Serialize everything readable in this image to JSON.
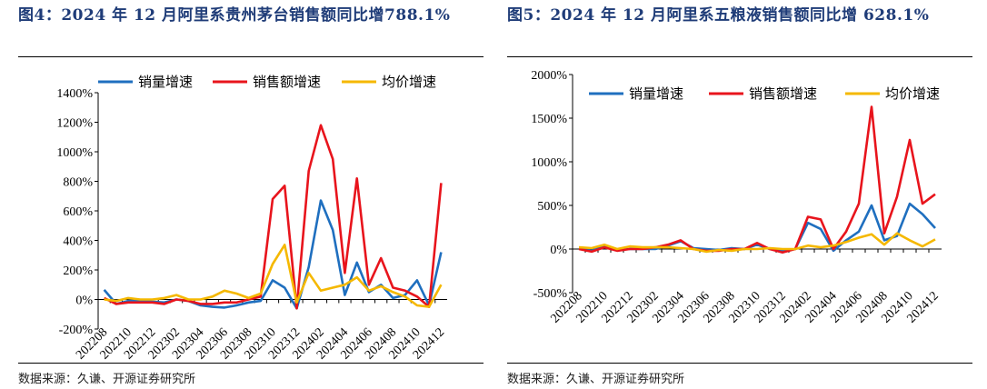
{
  "figures": [
    {
      "title": "图4：2024 年 12 月阿里系贵州茅台销售额同比增788.1%",
      "source": "数据来源：久谦、开源证券研究所",
      "chart_data": {
        "type": "line",
        "ytick_labels": [
          "-200%",
          "0%",
          "200%",
          "400%",
          "600%",
          "800%",
          "1000%",
          "1200%",
          "1400%"
        ],
        "ylim": [
          -200,
          1400
        ],
        "xtick_labels": [
          "202208",
          "202210",
          "202212",
          "202302",
          "202304",
          "202306",
          "202308",
          "202310",
          "202312",
          "202402",
          "202404",
          "202406",
          "202408",
          "202410",
          "202412"
        ],
        "categories": [
          "202208",
          "202209",
          "202210",
          "202211",
          "202212",
          "202301",
          "202302",
          "202303",
          "202304",
          "202305",
          "202306",
          "202307",
          "202308",
          "202309",
          "202310",
          "202311",
          "202312",
          "202401",
          "202402",
          "202403",
          "202404",
          "202405",
          "202406",
          "202407",
          "202408",
          "202409",
          "202410",
          "202411",
          "202412"
        ],
        "legend_position": "top",
        "series": [
          {
            "name": "销量增速",
            "color": "#1f6fbf",
            "values": [
              65,
              -30,
              -10,
              -10,
              -15,
              -20,
              0,
              -10,
              -40,
              -50,
              -55,
              -40,
              -20,
              -10,
              130,
              80,
              -60,
              220,
              670,
              470,
              30,
              250,
              50,
              100,
              10,
              30,
              130,
              -40,
              320
            ]
          },
          {
            "name": "销售额增速",
            "color": "#e8141c",
            "values": [
              10,
              -30,
              -20,
              -20,
              -20,
              -30,
              0,
              -10,
              -30,
              -30,
              -20,
              -20,
              0,
              20,
              680,
              770,
              -60,
              870,
              1180,
              950,
              180,
              820,
              100,
              280,
              80,
              60,
              20,
              -50,
              788
            ]
          },
          {
            "name": "均价增速",
            "color": "#f5b800",
            "values": [
              0,
              -10,
              10,
              0,
              0,
              10,
              30,
              0,
              0,
              20,
              60,
              40,
              10,
              40,
              240,
              370,
              -20,
              180,
              60,
              80,
              100,
              150,
              60,
              90,
              50,
              20,
              -40,
              -50,
              100
            ]
          }
        ]
      }
    },
    {
      "title": "图5：2024 年 12 月阿里系五粮液销售额同比增 628.1%",
      "source": "数据来源：久谦、开源证券研究所",
      "chart_data": {
        "type": "line",
        "ytick_labels": [
          "-500%",
          "0%",
          "500%",
          "1000%",
          "1500%",
          "2000%"
        ],
        "ylim": [
          -500,
          2000
        ],
        "xtick_labels": [
          "202208",
          "202210",
          "202212",
          "202302",
          "202304",
          "202306",
          "202308",
          "202310",
          "202312",
          "202402",
          "202404",
          "202406",
          "202408",
          "202410",
          "202412"
        ],
        "categories": [
          "202208",
          "202209",
          "202210",
          "202211",
          "202212",
          "202301",
          "202302",
          "202303",
          "202304",
          "202305",
          "202306",
          "202307",
          "202308",
          "202309",
          "202310",
          "202311",
          "202312",
          "202401",
          "202402",
          "202403",
          "202404",
          "202405",
          "202406",
          "202407",
          "202408",
          "202409",
          "202410",
          "202411",
          "202412"
        ],
        "legend_position": "top",
        "series": [
          {
            "name": "销量增速",
            "color": "#1f6fbf",
            "values": [
              10,
              -20,
              30,
              -10,
              0,
              0,
              0,
              40,
              90,
              10,
              0,
              -10,
              10,
              0,
              50,
              0,
              -20,
              0,
              300,
              230,
              -20,
              100,
              200,
              500,
              100,
              150,
              520,
              400,
              240
            ]
          },
          {
            "name": "销售额增速",
            "color": "#e8141c",
            "values": [
              0,
              -30,
              20,
              -20,
              0,
              0,
              20,
              50,
              100,
              0,
              -20,
              -20,
              0,
              0,
              70,
              0,
              -40,
              0,
              370,
              340,
              0,
              200,
              520,
              1630,
              180,
              600,
              1250,
              520,
              628
            ]
          },
          {
            "name": "均价增速",
            "color": "#f5b800",
            "values": [
              20,
              10,
              50,
              0,
              30,
              20,
              20,
              20,
              10,
              0,
              -30,
              -10,
              -20,
              0,
              0,
              10,
              0,
              0,
              40,
              20,
              40,
              80,
              130,
              170,
              50,
              180,
              100,
              30,
              110
            ]
          }
        ]
      }
    }
  ]
}
